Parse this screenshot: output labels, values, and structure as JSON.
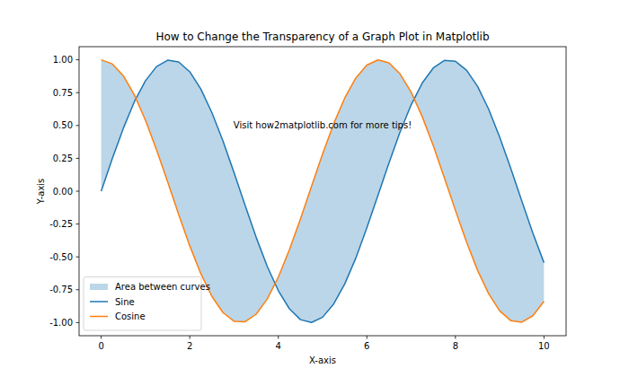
{
  "chart_data": {
    "type": "line",
    "title": "How to Change the Transparency of a Graph Plot in Matplotlib",
    "x_label": "X-axis",
    "y_label": "Y-axis",
    "x": [
      0,
      0.25,
      0.5,
      0.75,
      1,
      1.25,
      1.5,
      1.75,
      2,
      2.25,
      2.5,
      2.75,
      3,
      3.25,
      3.5,
      3.75,
      4,
      4.25,
      4.5,
      4.75,
      5,
      5.25,
      5.5,
      5.75,
      6,
      6.25,
      6.5,
      6.75,
      7,
      7.25,
      7.5,
      7.75,
      8,
      8.25,
      8.5,
      8.75,
      9,
      9.25,
      9.5,
      9.75,
      10
    ],
    "series": [
      {
        "name": "Area between curves",
        "type": "fill_between",
        "color": "#1f77b4"
      },
      {
        "name": "Sine",
        "type": "line",
        "color": "#1f77b4",
        "values": [
          0,
          0.247,
          0.479,
          0.682,
          0.841,
          0.949,
          0.997,
          0.984,
          0.909,
          0.778,
          0.598,
          0.382,
          0.141,
          -0.108,
          -0.351,
          -0.572,
          -0.757,
          -0.895,
          -0.978,
          -0.999,
          -0.959,
          -0.859,
          -0.706,
          -0.51,
          -0.279,
          -0.033,
          0.215,
          0.451,
          0.657,
          0.823,
          0.938,
          0.995,
          0.989,
          0.922,
          0.798,
          0.625,
          0.412,
          0.174,
          -0.075,
          -0.32,
          -0.544
        ]
      },
      {
        "name": "Cosine",
        "type": "line",
        "color": "#ff7f0e",
        "values": [
          1,
          0.969,
          0.878,
          0.732,
          0.54,
          0.315,
          0.071,
          -0.178,
          -0.416,
          -0.628,
          -0.801,
          -0.924,
          -0.99,
          -0.994,
          -0.936,
          -0.821,
          -0.654,
          -0.446,
          -0.211,
          0.038,
          0.284,
          0.513,
          0.709,
          0.861,
          0.96,
          0.999,
          0.977,
          0.893,
          0.754,
          0.568,
          0.347,
          0.103,
          -0.146,
          -0.386,
          -0.602,
          -0.78,
          -0.911,
          -0.985,
          -0.997,
          -0.948,
          -0.839
        ]
      }
    ],
    "annotations": [
      {
        "text": "Visit how2matplotlib.com for more tips!",
        "x": 5,
        "y": 0.5
      }
    ],
    "xlim": [
      -0.5,
      10.5
    ],
    "xticks": [
      0,
      2,
      4,
      6,
      8,
      10
    ],
    "ylim": [
      -1.1,
      1.1
    ],
    "yticks": [
      {
        "value": -1,
        "label": "-1.00"
      },
      {
        "value": -0.75,
        "label": "-0.75"
      },
      {
        "value": -0.5,
        "label": "-0.50"
      },
      {
        "value": -0.25,
        "label": "-0.25"
      },
      {
        "value": 0,
        "label": "0.00"
      },
      {
        "value": 0.25,
        "label": "0.25"
      },
      {
        "value": 0.5,
        "label": "0.50"
      },
      {
        "value": 0.75,
        "label": "0.75"
      },
      {
        "value": 1,
        "label": "1.00"
      }
    ],
    "grid": false,
    "legend": "lower left"
  }
}
